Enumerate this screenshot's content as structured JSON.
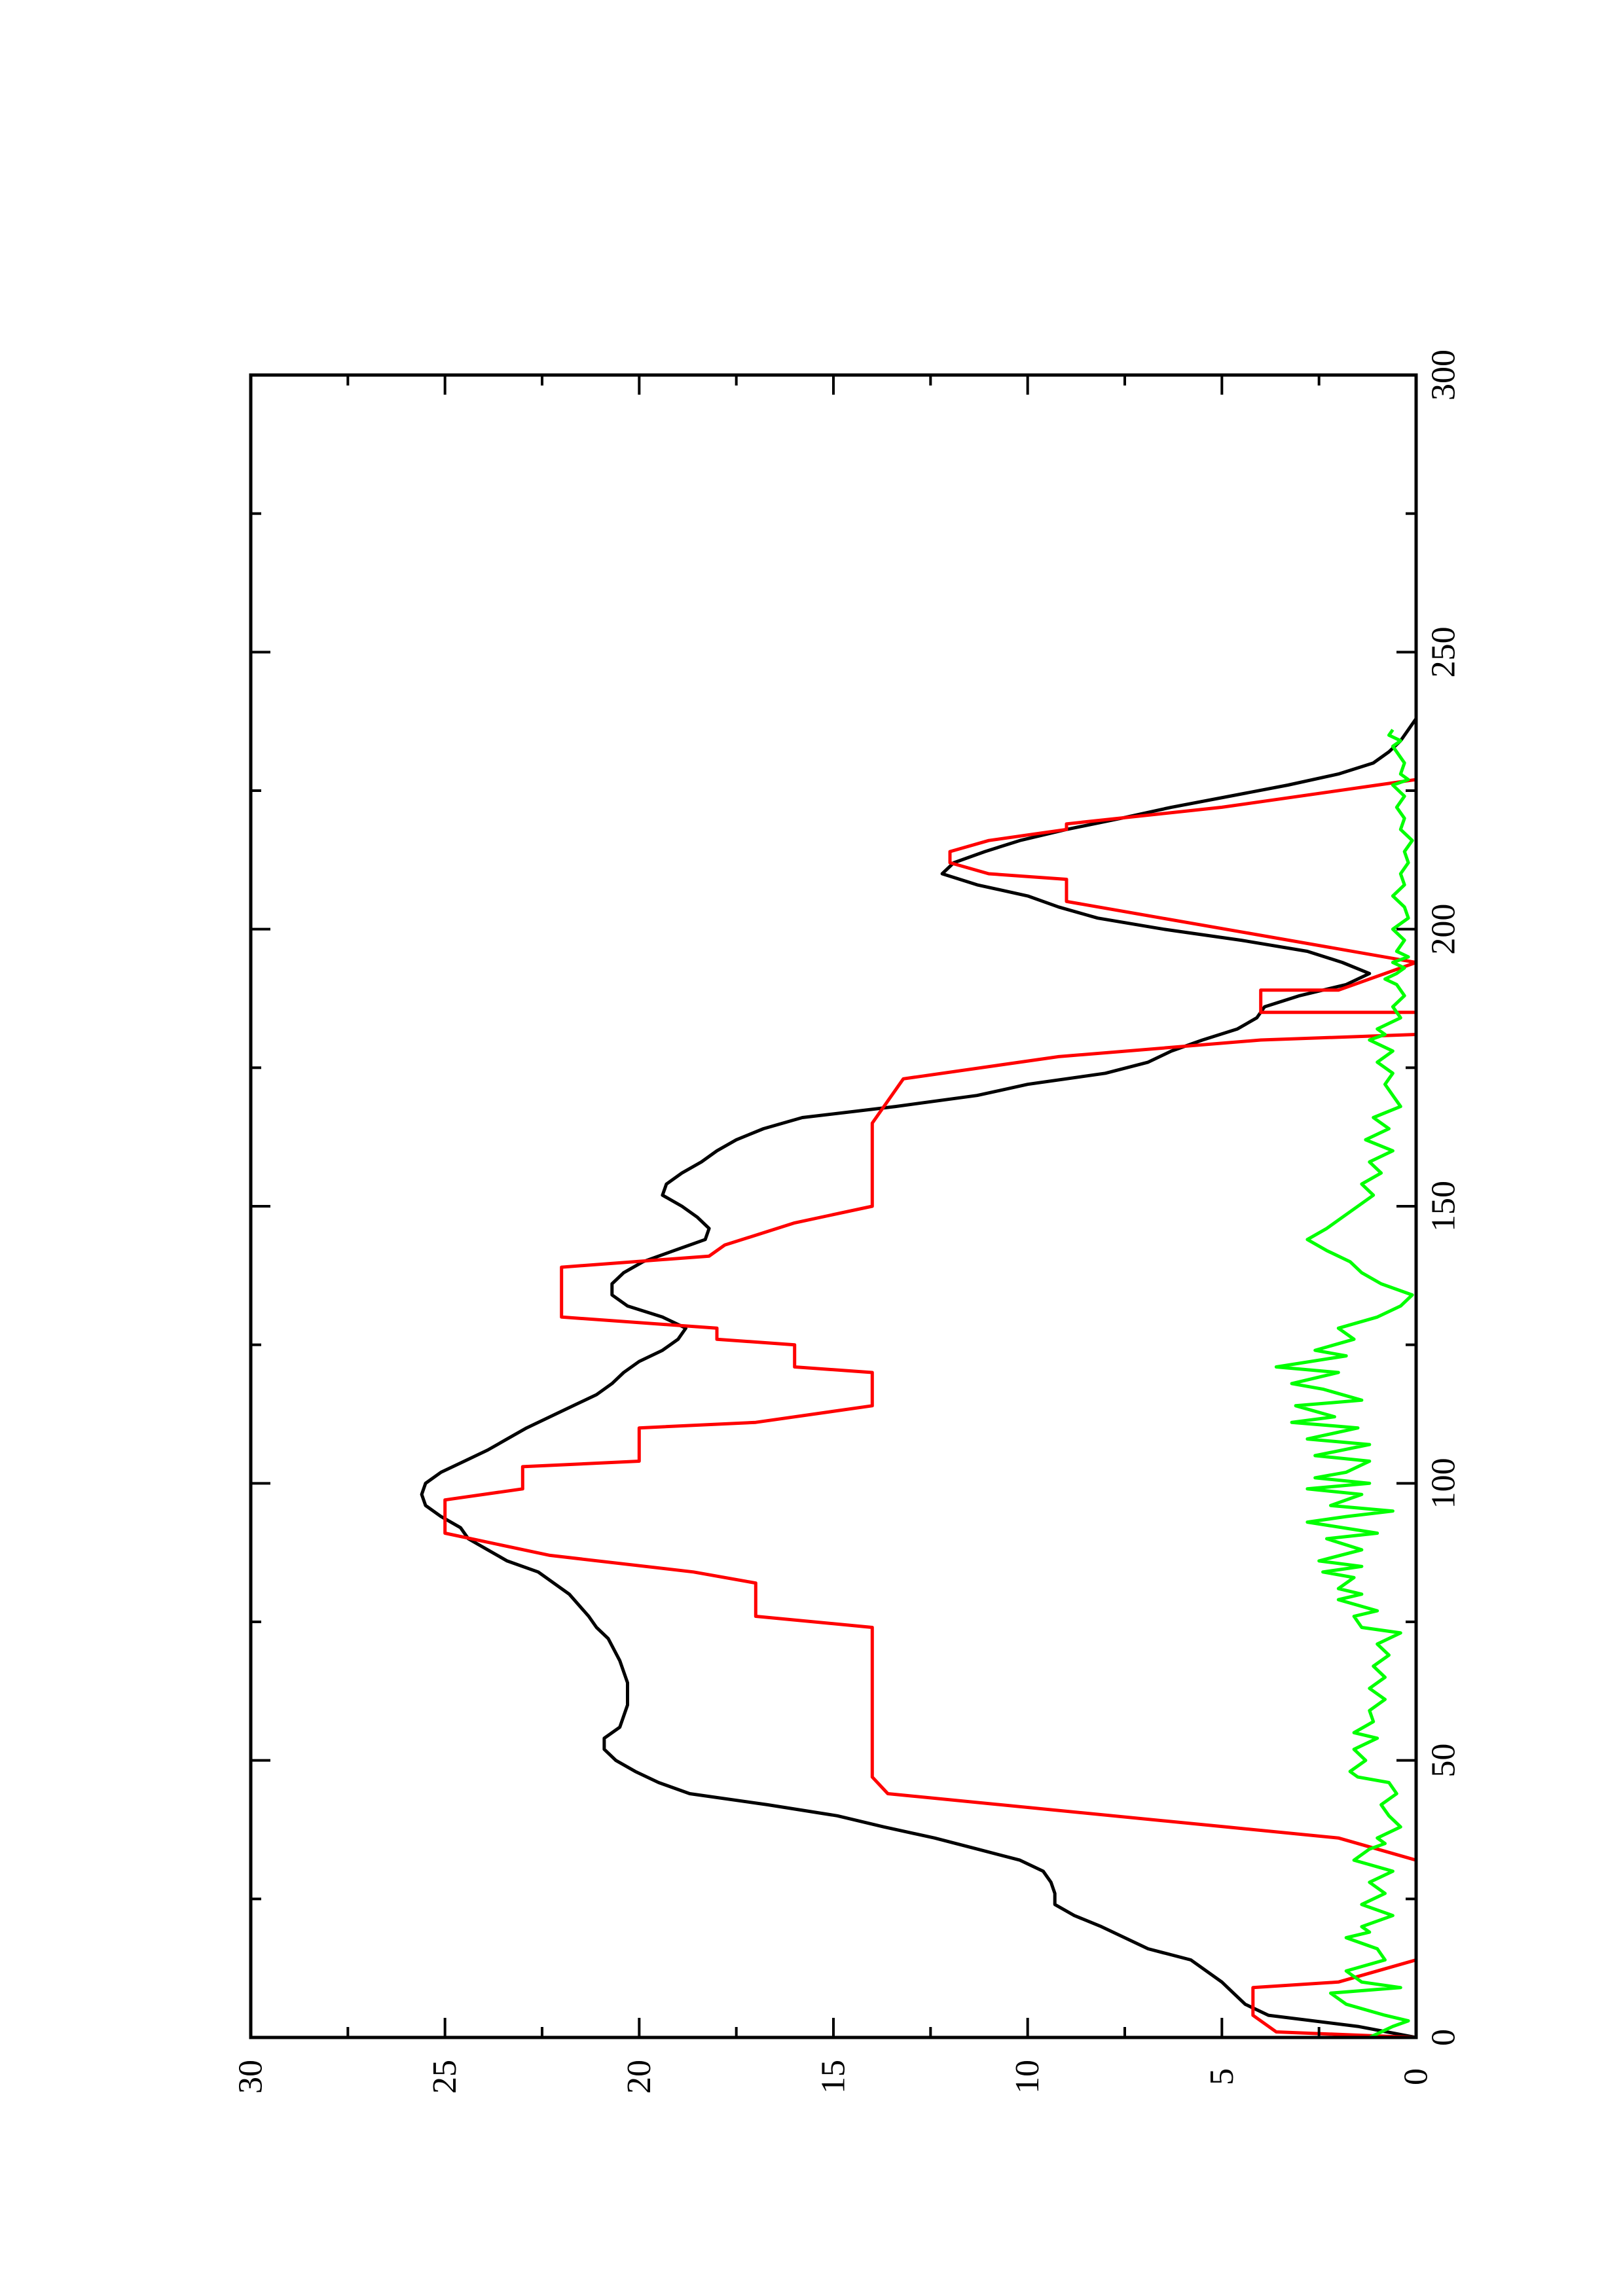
{
  "chart_data": {
    "type": "line",
    "orientation": "rotated 90 degrees counter-clockwise (page in landscape)",
    "title": "",
    "xlabel": "",
    "ylabel": "",
    "xlim": [
      0,
      300
    ],
    "ylim": [
      0,
      30
    ],
    "x_ticks": [
      "0",
      "50",
      "100",
      "150",
      "200",
      "250",
      "300"
    ],
    "y_ticks": [
      "0",
      "5",
      "10",
      "15",
      "20",
      "25",
      "30"
    ],
    "grid": false,
    "legend": "none",
    "series": [
      {
        "color": "#000000",
        "style": "smooth line",
        "points": [
          [
            0,
            0
          ],
          [
            2,
            1.5
          ],
          [
            4,
            3.8
          ],
          [
            6,
            4.4
          ],
          [
            8,
            4.7
          ],
          [
            10,
            5.0
          ],
          [
            14,
            5.8
          ],
          [
            16,
            6.9
          ],
          [
            18,
            7.5
          ],
          [
            20,
            8.1
          ],
          [
            22,
            8.8
          ],
          [
            24,
            9.3
          ],
          [
            26,
            9.3
          ],
          [
            28,
            9.4
          ],
          [
            30,
            9.6
          ],
          [
            32,
            10.2
          ],
          [
            34,
            11.3
          ],
          [
            36,
            12.4
          ],
          [
            38,
            13.7
          ],
          [
            40,
            14.9
          ],
          [
            42,
            16.7
          ],
          [
            44,
            18.7
          ],
          [
            46,
            19.5
          ],
          [
            48,
            20.1
          ],
          [
            50,
            20.6
          ],
          [
            52,
            20.9
          ],
          [
            54,
            20.9
          ],
          [
            56,
            20.5
          ],
          [
            60,
            20.3
          ],
          [
            64,
            20.3
          ],
          [
            68,
            20.5
          ],
          [
            72,
            20.8
          ],
          [
            74,
            21.1
          ],
          [
            76,
            21.3
          ],
          [
            80,
            21.8
          ],
          [
            84,
            22.6
          ],
          [
            86,
            23.4
          ],
          [
            88,
            23.9
          ],
          [
            90,
            24.4
          ],
          [
            92,
            24.6
          ],
          [
            94,
            25.1
          ],
          [
            96,
            25.5
          ],
          [
            98,
            25.6
          ],
          [
            100,
            25.5
          ],
          [
            102,
            25.1
          ],
          [
            104,
            24.5
          ],
          [
            106,
            23.9
          ],
          [
            108,
            23.4
          ],
          [
            110,
            22.9
          ],
          [
            112,
            22.3
          ],
          [
            114,
            21.7
          ],
          [
            116,
            21.1
          ],
          [
            118,
            20.7
          ],
          [
            120,
            20.4
          ],
          [
            122,
            20.0
          ],
          [
            124,
            19.4
          ],
          [
            126,
            19.0
          ],
          [
            128,
            18.8
          ],
          [
            130,
            19.4
          ],
          [
            132,
            20.3
          ],
          [
            134,
            20.7
          ],
          [
            136,
            20.7
          ],
          [
            138,
            20.4
          ],
          [
            140,
            19.9
          ],
          [
            142,
            19.1
          ],
          [
            144,
            18.3
          ],
          [
            146,
            18.2
          ],
          [
            148,
            18.5
          ],
          [
            150,
            18.9
          ],
          [
            152,
            19.4
          ],
          [
            154,
            19.3
          ],
          [
            156,
            18.9
          ],
          [
            158,
            18.4
          ],
          [
            160,
            18.0
          ],
          [
            162,
            17.5
          ],
          [
            164,
            16.8
          ],
          [
            166,
            15.8
          ],
          [
            168,
            13.4
          ],
          [
            170,
            11.3
          ],
          [
            172,
            10.0
          ],
          [
            174,
            8.0
          ],
          [
            176,
            6.9
          ],
          [
            178,
            6.3
          ],
          [
            180,
            5.5
          ],
          [
            182,
            4.6
          ],
          [
            184,
            4.1
          ],
          [
            186,
            3.9
          ],
          [
            188,
            3.0
          ],
          [
            190,
            1.8
          ],
          [
            192,
            1.2
          ],
          [
            194,
            1.9
          ],
          [
            196,
            2.8
          ],
          [
            198,
            4.5
          ],
          [
            200,
            6.5
          ],
          [
            202,
            8.2
          ],
          [
            204,
            9.2
          ],
          [
            206,
            10.0
          ],
          [
            208,
            11.3
          ],
          [
            210,
            12.2
          ],
          [
            212,
            11.9
          ],
          [
            214,
            11.1
          ],
          [
            216,
            10.2
          ],
          [
            218,
            9.0
          ],
          [
            220,
            7.6
          ],
          [
            222,
            6.3
          ],
          [
            224,
            4.8
          ],
          [
            226,
            3.3
          ],
          [
            228,
            2.0
          ],
          [
            230,
            1.1
          ],
          [
            232,
            0.7
          ],
          [
            234,
            0.4
          ],
          [
            236,
            0.2
          ],
          [
            238,
            0
          ]
        ]
      },
      {
        "color": "#ff0000",
        "style": "stepped line",
        "points": [
          [
            0,
            0
          ],
          [
            1,
            3.6
          ],
          [
            4,
            4.2
          ],
          [
            9,
            4.2
          ],
          [
            10,
            2
          ],
          [
            14,
            0
          ],
          [
            32,
            0
          ],
          [
            36,
            2
          ],
          [
            38,
            4.9
          ],
          [
            44,
            13.6
          ],
          [
            47,
            14
          ],
          [
            74,
            14
          ],
          [
            76,
            17
          ],
          [
            82,
            17
          ],
          [
            84,
            18.6
          ],
          [
            87,
            22.3
          ],
          [
            91,
            25
          ],
          [
            97,
            25
          ],
          [
            99,
            23
          ],
          [
            103,
            23
          ],
          [
            104,
            20
          ],
          [
            110,
            20
          ],
          [
            111,
            17
          ],
          [
            114,
            14
          ],
          [
            120,
            14
          ],
          [
            121,
            16
          ],
          [
            125,
            16
          ],
          [
            126,
            18
          ],
          [
            128,
            18
          ],
          [
            130,
            22
          ],
          [
            139,
            22
          ],
          [
            141,
            18.2
          ],
          [
            143,
            17.8
          ],
          [
            147,
            16
          ],
          [
            150,
            14
          ],
          [
            165,
            14
          ],
          [
            173,
            13.2
          ],
          [
            177,
            9.2
          ],
          [
            180,
            4
          ],
          [
            181,
            0
          ],
          [
            185,
            0
          ],
          [
            185,
            4
          ],
          [
            189,
            4
          ],
          [
            189,
            2
          ],
          [
            194,
            0
          ],
          [
            194,
            0
          ],
          [
            205,
            9
          ],
          [
            209,
            9
          ],
          [
            210,
            11
          ],
          [
            212,
            12
          ],
          [
            214,
            12
          ],
          [
            216,
            11
          ],
          [
            218,
            9
          ],
          [
            219,
            9
          ],
          [
            222,
            5
          ],
          [
            226,
            1
          ],
          [
            227,
            0
          ]
        ]
      },
      {
        "color": "#00ff00",
        "style": "noisy line",
        "points": [
          [
            0,
            1.2
          ],
          [
            2,
            0.6
          ],
          [
            3,
            0.2
          ],
          [
            4,
            0.8
          ],
          [
            6,
            1.8
          ],
          [
            8,
            2.2
          ],
          [
            9,
            0.4
          ],
          [
            10,
            1.4
          ],
          [
            11,
            1.6
          ],
          [
            12,
            1.8
          ],
          [
            14,
            0.8
          ],
          [
            16,
            1.0
          ],
          [
            18,
            1.8
          ],
          [
            19,
            1.2
          ],
          [
            20,
            1.4
          ],
          [
            22,
            0.6
          ],
          [
            24,
            1.4
          ],
          [
            26,
            0.8
          ],
          [
            28,
            1.2
          ],
          [
            30,
            0.6
          ],
          [
            32,
            1.6
          ],
          [
            34,
            1.2
          ],
          [
            35,
            0.8
          ],
          [
            36,
            1.0
          ],
          [
            38,
            0.4
          ],
          [
            40,
            0.7
          ],
          [
            42,
            0.9
          ],
          [
            44,
            0.5
          ],
          [
            46,
            0.7
          ],
          [
            47,
            1.5
          ],
          [
            48,
            1.7
          ],
          [
            50,
            1.3
          ],
          [
            52,
            1.6
          ],
          [
            54,
            1.0
          ],
          [
            55,
            1.6
          ],
          [
            57,
            1.1
          ],
          [
            59,
            1.2
          ],
          [
            61,
            0.8
          ],
          [
            63,
            1.2
          ],
          [
            65,
            0.8
          ],
          [
            67,
            1.1
          ],
          [
            69,
            0.7
          ],
          [
            71,
            1.0
          ],
          [
            73,
            0.4
          ],
          [
            74,
            1.4
          ],
          [
            76,
            1.6
          ],
          [
            77,
            1.0
          ],
          [
            79,
            2.0
          ],
          [
            80,
            1.4
          ],
          [
            81,
            2.0
          ],
          [
            83,
            1.6
          ],
          [
            84,
            2.4
          ],
          [
            85,
            1.4
          ],
          [
            86,
            2.5
          ],
          [
            88,
            1.4
          ],
          [
            90,
            2.3
          ],
          [
            91,
            1.0
          ],
          [
            93,
            2.8
          ],
          [
            94,
            1.8
          ],
          [
            95,
            0.6
          ],
          [
            96,
            2.2
          ],
          [
            98,
            1.4
          ],
          [
            99,
            2.8
          ],
          [
            100,
            1.2
          ],
          [
            101,
            2.6
          ],
          [
            102,
            1.8
          ],
          [
            104,
            1.2
          ],
          [
            105,
            2.6
          ],
          [
            107,
            1.2
          ],
          [
            108,
            2.8
          ],
          [
            110,
            1.5
          ],
          [
            111,
            3.2
          ],
          [
            112,
            2.1
          ],
          [
            114,
            3.1
          ],
          [
            115,
            1.4
          ],
          [
            117,
            2.4
          ],
          [
            118,
            3.2
          ],
          [
            120,
            2.0
          ],
          [
            121,
            3.6
          ],
          [
            123,
            1.8
          ],
          [
            124,
            2.6
          ],
          [
            126,
            1.6
          ],
          [
            128,
            2.0
          ],
          [
            130,
            1.0
          ],
          [
            132,
            0.4
          ],
          [
            134,
            0.1
          ],
          [
            136,
            0.9
          ],
          [
            138,
            1.4
          ],
          [
            140,
            1.7
          ],
          [
            142,
            2.3
          ],
          [
            144,
            2.8
          ],
          [
            146,
            2.3
          ],
          [
            148,
            1.9
          ],
          [
            150,
            1.5
          ],
          [
            152,
            1.1
          ],
          [
            154,
            1.4
          ],
          [
            156,
            0.9
          ],
          [
            158,
            1.2
          ],
          [
            160,
            0.6
          ],
          [
            162,
            1.3
          ],
          [
            164,
            0.7
          ],
          [
            166,
            1.1
          ],
          [
            168,
            0.4
          ],
          [
            170,
            0.6
          ],
          [
            172,
            0.8
          ],
          [
            174,
            0.6
          ],
          [
            176,
            1.0
          ],
          [
            178,
            0.6
          ],
          [
            180,
            1.2
          ],
          [
            181,
            0.8
          ],
          [
            182,
            1.0
          ],
          [
            184,
            0.4
          ],
          [
            186,
            0.6
          ],
          [
            188,
            0.3
          ],
          [
            190,
            0.5
          ],
          [
            191,
            0.8
          ],
          [
            192,
            0.5
          ],
          [
            193,
            0.3
          ],
          [
            194,
            0.6
          ],
          [
            195,
            0.2
          ],
          [
            196,
            0.5
          ],
          [
            198,
            0.3
          ],
          [
            200,
            0.6
          ],
          [
            202,
            0.2
          ],
          [
            204,
            0.3
          ],
          [
            206,
            0.6
          ],
          [
            208,
            0.3
          ],
          [
            210,
            0.4
          ],
          [
            212,
            0.2
          ],
          [
            214,
            0.3
          ],
          [
            216,
            0.1
          ],
          [
            218,
            0.4
          ],
          [
            220,
            0.3
          ],
          [
            222,
            0.5
          ],
          [
            224,
            0.3
          ],
          [
            226,
            0.6
          ],
          [
            227,
            0.2
          ],
          [
            228,
            0.4
          ],
          [
            230,
            0.3
          ],
          [
            232,
            0.5
          ],
          [
            233,
            0.6
          ],
          [
            234,
            0.4
          ],
          [
            235,
            0.7
          ],
          [
            236,
            0.6
          ]
        ]
      }
    ]
  }
}
